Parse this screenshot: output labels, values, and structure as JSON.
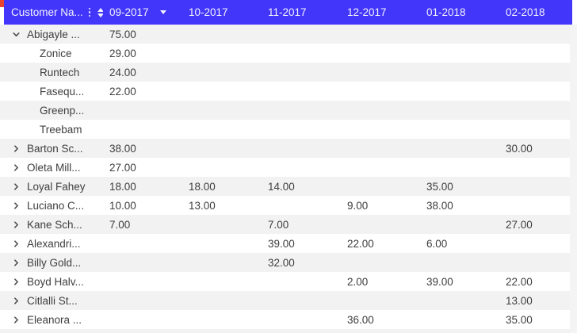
{
  "theme": {
    "header_bg": "#4236fb",
    "header_text": "#f2f1ff",
    "row_bg": "#ffffff",
    "row_alt_bg": "#f2f2f2",
    "row_text": "#3e3e3e",
    "chevron_color": "#4a4a4a",
    "gutter_bg": "#f4f4f4",
    "artifact_red": "#e8442f"
  },
  "header": {
    "name_column": {
      "label": "Customer Na..."
    },
    "months": [
      "09-2017",
      "10-2017",
      "11-2017",
      "12-2017",
      "01-2018",
      "02-2018"
    ],
    "sorted_column": "09-2017",
    "sort_direction": "desc"
  },
  "rows": [
    {
      "label": "Abigayle ...",
      "type": "parent-expanded",
      "values": [
        "75.00",
        "",
        "",
        "",
        "",
        ""
      ]
    },
    {
      "label": "Zonice",
      "type": "child",
      "values": [
        "29.00",
        "",
        "",
        "",
        "",
        ""
      ]
    },
    {
      "label": "Runtech",
      "type": "child",
      "values": [
        "24.00",
        "",
        "",
        "",
        "",
        ""
      ]
    },
    {
      "label": "Fasequ...",
      "type": "child",
      "values": [
        "22.00",
        "",
        "",
        "",
        "",
        ""
      ]
    },
    {
      "label": "Greenp...",
      "type": "child",
      "values": [
        "",
        "",
        "",
        "",
        "",
        ""
      ]
    },
    {
      "label": "Treebam",
      "type": "child",
      "values": [
        "",
        "",
        "",
        "",
        "",
        ""
      ]
    },
    {
      "label": "Barton Sc...",
      "type": "parent-collapsed",
      "values": [
        "38.00",
        "",
        "",
        "",
        "",
        "30.00"
      ]
    },
    {
      "label": "Oleta Mill...",
      "type": "parent-collapsed",
      "values": [
        "27.00",
        "",
        "",
        "",
        "",
        ""
      ]
    },
    {
      "label": "Loyal Fahey",
      "type": "parent-collapsed",
      "values": [
        "18.00",
        "18.00",
        "14.00",
        "",
        "35.00",
        ""
      ]
    },
    {
      "label": "Luciano C...",
      "type": "parent-collapsed",
      "values": [
        "10.00",
        "13.00",
        "",
        "9.00",
        "38.00",
        ""
      ]
    },
    {
      "label": "Kane Sch...",
      "type": "parent-collapsed",
      "values": [
        "7.00",
        "",
        "7.00",
        "",
        "",
        "27.00"
      ]
    },
    {
      "label": "Alexandri...",
      "type": "parent-collapsed",
      "values": [
        "",
        "",
        "39.00",
        "22.00",
        "6.00",
        ""
      ]
    },
    {
      "label": "Billy Gold...",
      "type": "parent-collapsed",
      "values": [
        "",
        "",
        "32.00",
        "",
        "",
        ""
      ]
    },
    {
      "label": "Boyd Halv...",
      "type": "parent-collapsed",
      "values": [
        "",
        "",
        "",
        "2.00",
        "39.00",
        "22.00"
      ]
    },
    {
      "label": "Citlalli St...",
      "type": "parent-collapsed",
      "values": [
        "",
        "",
        "",
        "",
        "",
        "13.00"
      ]
    },
    {
      "label": "Eleanora ...",
      "type": "parent-collapsed",
      "values": [
        "",
        "",
        "",
        "36.00",
        "",
        "35.00"
      ]
    }
  ]
}
